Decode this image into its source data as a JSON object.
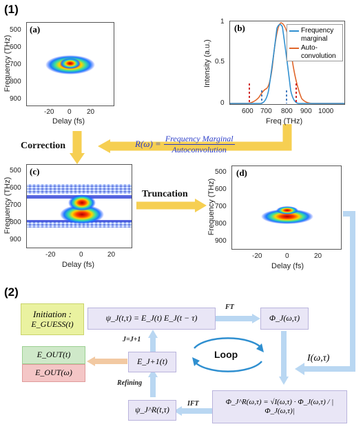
{
  "section1_label": "(1)",
  "section2_label": "(2)",
  "panel_a": {
    "letter": "(a)",
    "ylabel": "Frequency (THz)",
    "xlabel": "Delay (fs)",
    "yticks": [
      "500",
      "600",
      "700",
      "800",
      "900"
    ],
    "xticks": [
      "-20",
      "0",
      "20"
    ]
  },
  "panel_b": {
    "letter": "(b)",
    "ylabel": "Intensity (a.u.)",
    "xlabel": "Freq (THz)",
    "yticks": [
      "1",
      "0.5",
      "0"
    ],
    "xticks": [
      "600",
      "700",
      "800",
      "900",
      "1000"
    ],
    "legend": [
      "Frequency marginal",
      "Auto-convolution"
    ],
    "colors": {
      "marginal": "#2f8fd0",
      "autoconv": "#e0662a",
      "cut": "#cc1111"
    }
  },
  "panel_c": {
    "letter": "(c)",
    "ylabel": "Frequency (THz)",
    "xlabel": "Delay (fs)",
    "yticks": [
      "500",
      "600",
      "700",
      "800",
      "900"
    ],
    "xticks": [
      "-20",
      "0",
      "20"
    ]
  },
  "panel_d": {
    "letter": "(d)",
    "ylabel": "Frequency (THz)",
    "xlabel": "Delay (fs)",
    "yticks": [
      "500",
      "600",
      "700",
      "800",
      "900"
    ],
    "xticks": [
      "-20",
      "0",
      "20"
    ]
  },
  "correction_label": "Correction",
  "truncation_label": "Truncation",
  "formula": {
    "lhs": "R(ω) =",
    "numerator": "Frequency Marginal",
    "denominator": "Autoconvolution"
  },
  "algorithm": {
    "initiation_line1": "Initiation :",
    "initiation_line2": "E_GUESS(t)",
    "psi_box": "ψ_J(t,τ) = E_J(t) E_J(t − τ)",
    "ft_label": "FT",
    "phi_box": "Φ_J(ω,τ)",
    "j_update": "J=J+1",
    "loop_label": "Loop",
    "intensity_label": "I(ω,τ)",
    "e_next_box": "E_J+1(t)",
    "e_out_t": "E_OUT(t)",
    "e_out_w": "E_OUT(ω)",
    "refining_label": "Refining",
    "psi_r_box": "ψ_J^R(t,τ)",
    "ifft_label": "IFT",
    "phi_r_box": "Φ_J^R(ω,τ) = √I(ω,τ) · Φ_J(ω,τ) / |Φ_J(ω,τ)|"
  }
}
